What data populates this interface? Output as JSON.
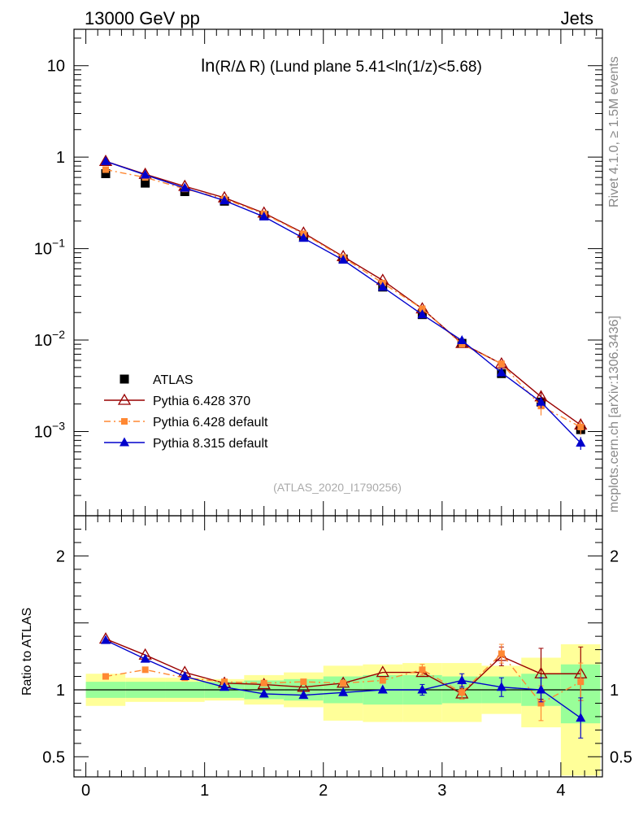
{
  "header": {
    "left": "13000 GeV pp",
    "right": "Jets"
  },
  "title_main": "ln",
  "title_rest": "(R/Δ R)  (Lund plane 5.41<ln(1/z)<5.68)",
  "watermark": "(ATLAS_2020_I1790256)",
  "side_label_top": "Rivet 4.1.0, ≥ 1.5M events",
  "side_label_bottom": "mcplots.cern.ch [arXiv:1306.3436]",
  "ratio_ylabel": "Ratio to ATLAS",
  "colors": {
    "atlas": "#000000",
    "py6_370": "#990000",
    "py6_default": "#ff8833",
    "py8": "#0000cc",
    "band_inner": "#99ff99",
    "band_outer": "#ffff99"
  },
  "chart_data": [
    {
      "type": "scatter",
      "panel": "main",
      "yscale": "log",
      "xlim": [
        -0.1,
        4.35
      ],
      "ylim": [
        0.00012,
        25
      ],
      "y_ticks": [
        {
          "value": 10,
          "label": "10"
        },
        {
          "value": 1,
          "label": "1"
        },
        {
          "value": 0.1,
          "label": "10",
          "exp": "−1"
        },
        {
          "value": 0.01,
          "label": "10",
          "exp": "−2"
        },
        {
          "value": 0.001,
          "label": "10",
          "exp": "−3"
        }
      ],
      "x": [
        0.167,
        0.5,
        0.833,
        1.167,
        1.5,
        1.833,
        2.167,
        2.5,
        2.833,
        3.167,
        3.5,
        3.833,
        4.167
      ],
      "legend": [
        "ATLAS",
        "Pythia 6.428 370",
        "Pythia 6.428 default",
        "Pythia 8.315 default"
      ],
      "series": [
        {
          "name": "ATLAS",
          "marker": "square",
          "style": "points",
          "values": [
            0.66,
            0.52,
            0.42,
            0.33,
            0.23,
            0.135,
            0.077,
            0.038,
            0.019,
            0.0092,
            0.0043,
            0.0021,
            0.00105
          ],
          "err": [
            0.02,
            0.015,
            0.012,
            0.01,
            0.007,
            0.004,
            0.002,
            0.001,
            0.0006,
            0.0004,
            0.0002,
            0.0001,
            0.0001
          ]
        },
        {
          "name": "Pythia 6.428 370",
          "marker": "triangle-open",
          "style": "solid",
          "values": [
            0.9,
            0.65,
            0.48,
            0.36,
            0.245,
            0.148,
            0.082,
            0.045,
            0.022,
            0.0092,
            0.0055,
            0.0024,
            0.00118
          ],
          "err": [
            0,
            0,
            0,
            0,
            0,
            0,
            0,
            0,
            0,
            0.0003,
            0.0003,
            0.0004,
            0.0002
          ]
        },
        {
          "name": "Pythia 6.428 default",
          "marker": "square-small",
          "style": "dashdot",
          "values": [
            0.73,
            0.6,
            0.45,
            0.35,
            0.24,
            0.145,
            0.08,
            0.042,
            0.022,
            0.009,
            0.0055,
            0.0019,
            0.00112
          ],
          "err": [
            0,
            0,
            0,
            0,
            0,
            0,
            0,
            0,
            0.001,
            0.0005,
            0.0005,
            0.0004,
            0.0002
          ]
        },
        {
          "name": "Pythia 8.315 default",
          "marker": "triangle-filled",
          "style": "solid",
          "values": [
            0.9,
            0.64,
            0.46,
            0.335,
            0.223,
            0.13,
            0.075,
            0.038,
            0.019,
            0.0099,
            0.0044,
            0.0021,
            0.00075
          ],
          "err": [
            0,
            0,
            0,
            0,
            0,
            0,
            0,
            0,
            0.0008,
            0.0006,
            0.0004,
            0.0003,
            0.00012
          ]
        }
      ]
    },
    {
      "type": "scatter",
      "panel": "ratio",
      "xlim": [
        -0.1,
        4.35
      ],
      "ylim": [
        0.35,
        2.3
      ],
      "x_ticks": [
        0,
        1,
        2,
        3,
        4
      ],
      "y_ticks": [
        {
          "value": 2,
          "label": "2"
        },
        {
          "value": 1,
          "label": "1"
        },
        {
          "value": 0.5,
          "label": "0.5"
        }
      ],
      "x": [
        0.167,
        0.5,
        0.833,
        1.167,
        1.5,
        1.833,
        2.167,
        2.5,
        2.833,
        3.167,
        3.5,
        3.833,
        4.167
      ],
      "bins": [
        [
          0,
          0.333
        ],
        [
          0.333,
          0.667
        ],
        [
          0.667,
          1.0
        ],
        [
          1.0,
          1.333
        ],
        [
          1.333,
          1.667
        ],
        [
          1.667,
          2.0
        ],
        [
          2.0,
          2.333
        ],
        [
          2.333,
          2.667
        ],
        [
          2.667,
          3.0
        ],
        [
          3.0,
          3.333
        ],
        [
          3.333,
          3.667
        ],
        [
          3.667,
          4.0
        ],
        [
          4.0,
          4.333
        ]
      ],
      "band_inner": [
        [
          0.94,
          1.06
        ],
        [
          0.94,
          1.06
        ],
        [
          0.94,
          1.06
        ],
        [
          0.94,
          1.06
        ],
        [
          0.93,
          1.07
        ],
        [
          0.92,
          1.08
        ],
        [
          0.9,
          1.1
        ],
        [
          0.89,
          1.11
        ],
        [
          0.89,
          1.11
        ],
        [
          0.9,
          1.1
        ],
        [
          0.9,
          1.1
        ],
        [
          0.88,
          1.12
        ],
        [
          0.75,
          1.19
        ]
      ],
      "band_outer": [
        [
          0.88,
          1.12
        ],
        [
          0.91,
          1.09
        ],
        [
          0.91,
          1.09
        ],
        [
          0.92,
          1.08
        ],
        [
          0.89,
          1.11
        ],
        [
          0.87,
          1.13
        ],
        [
          0.77,
          1.18
        ],
        [
          0.76,
          1.19
        ],
        [
          0.76,
          1.2
        ],
        [
          0.76,
          1.2
        ],
        [
          0.82,
          1.18
        ],
        [
          0.72,
          1.24
        ],
        [
          0.36,
          1.34
        ]
      ],
      "series": [
        {
          "name": "Pythia 6.428 370",
          "values": [
            1.38,
            1.26,
            1.13,
            1.05,
            1.04,
            1.02,
            1.05,
            1.13,
            1.13,
            0.97,
            1.25,
            1.12,
            1.12
          ],
          "err": [
            0,
            0,
            0,
            0,
            0,
            0,
            0,
            0,
            0.02,
            0.04,
            0.07,
            0.19,
            0.2
          ]
        },
        {
          "name": "Pythia 6.428 default",
          "values": [
            1.1,
            1.15,
            1.09,
            1.06,
            1.05,
            1.06,
            1.05,
            1.07,
            1.15,
            0.98,
            1.27,
            0.9,
            1.06
          ],
          "err": [
            0,
            0,
            0,
            0,
            0,
            0,
            0,
            0,
            0.04,
            0.05,
            0.07,
            0.13,
            0.14
          ]
        },
        {
          "name": "Pythia 8.315 default",
          "values": [
            1.37,
            1.23,
            1.1,
            1.02,
            0.97,
            0.96,
            0.98,
            1.0,
            1.0,
            1.07,
            1.02,
            1.0,
            0.79
          ],
          "err": [
            0,
            0,
            0,
            0,
            0,
            0,
            0,
            0,
            0.04,
            0.05,
            0.07,
            0.09,
            0.15
          ]
        }
      ]
    }
  ]
}
